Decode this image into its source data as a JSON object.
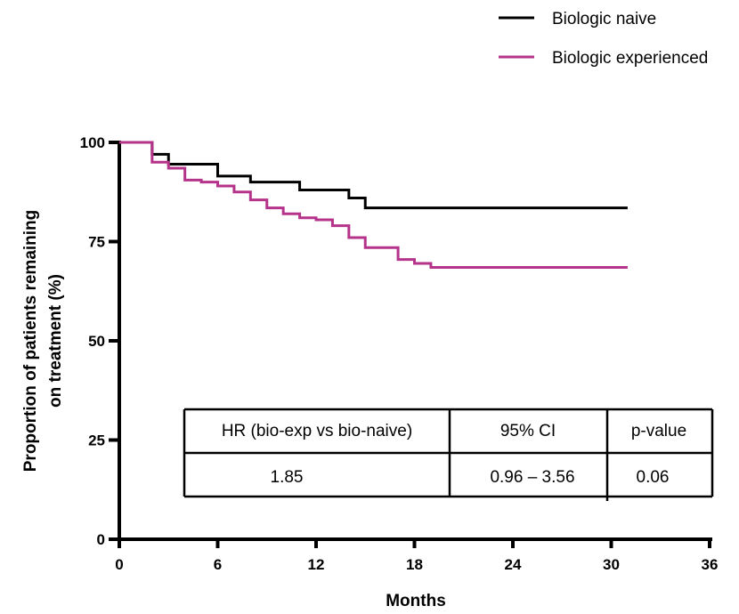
{
  "chart_data": {
    "type": "line",
    "title": "",
    "xlabel": "Months",
    "ylabel": "Proportion of patients remaining on treatment (%)",
    "ylabel_lines": [
      "Proportion of patients remaining",
      "on treatment (%)"
    ],
    "xlim": [
      0,
      36
    ],
    "ylim": [
      0,
      100
    ],
    "xticks": [
      0,
      6,
      12,
      18,
      24,
      30,
      36
    ],
    "yticks": [
      0,
      25,
      50,
      75,
      100
    ],
    "xtick_labels": [
      "0",
      "6",
      "12",
      "18",
      "24",
      "30",
      "36"
    ],
    "ytick_labels": [
      "0",
      "25",
      "50",
      "75",
      "100"
    ],
    "grid": false,
    "legend_position": "top-right",
    "series": [
      {
        "name": "Biologic naive",
        "color": "#000000",
        "step": true,
        "x": [
          0,
          2,
          3,
          6,
          8,
          11,
          14,
          15,
          31
        ],
        "y": [
          100,
          97,
          94.5,
          91.5,
          90,
          88,
          86,
          83.5,
          83.5
        ]
      },
      {
        "name": "Biologic experienced",
        "color": "#b5338a",
        "step": true,
        "x": [
          0,
          2,
          3,
          4,
          5,
          6,
          7,
          8,
          9,
          10,
          11,
          12,
          13,
          14,
          15,
          17,
          18,
          19,
          31
        ],
        "y": [
          100,
          95,
          93.5,
          90.5,
          90,
          89,
          87.5,
          85.5,
          83.5,
          82,
          81,
          80.5,
          79,
          76,
          73.5,
          70.5,
          69.5,
          68.5,
          68.5
        ]
      }
    ],
    "stats_table": {
      "headers": [
        "HR (bio-exp vs bio-naive)",
        "95% CI",
        "p-value"
      ],
      "values": [
        "1.85",
        "0.96 – 3.56",
        "0.06"
      ]
    }
  }
}
